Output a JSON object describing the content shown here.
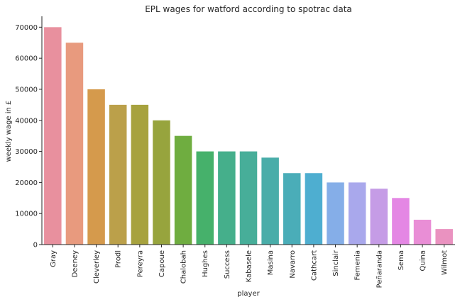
{
  "chart_data": {
    "type": "bar",
    "title": "EPL wages for watford according to spotrac data",
    "xlabel": "player",
    "ylabel": "weekly wage in £",
    "categories": [
      "Gray",
      "Deeney",
      "Cleverley",
      "Prodl",
      "Pereyra",
      "Capoue",
      "Chalobah",
      "Hughes",
      "Success",
      "Kabasele",
      "Masina",
      "Navarro",
      "Cathcart",
      "Sinclair",
      "Femenia",
      "Peñaranda",
      "Sema",
      "Quina",
      "Wilmot"
    ],
    "values": [
      70000,
      65000,
      50000,
      45000,
      45000,
      40000,
      35000,
      30000,
      30000,
      30000,
      28000,
      23000,
      23000,
      20000,
      20000,
      18000,
      15000,
      8000,
      5000
    ],
    "colors": [
      "#e8909e",
      "#e89a7e",
      "#d59a4c",
      "#bba04a",
      "#a7a23e",
      "#97a43d",
      "#6fad40",
      "#46b16b",
      "#45af8b",
      "#47ae99",
      "#49ada9",
      "#4aadb8",
      "#4eaed0",
      "#85aee8",
      "#a9a8ec",
      "#c59ce6",
      "#e487e4",
      "#e98ed6",
      "#ea92c0"
    ],
    "ylim": [
      0,
      73500
    ],
    "yticks": [
      0,
      10000,
      20000,
      30000,
      40000,
      50000,
      60000,
      70000
    ],
    "grid": false,
    "legend": "none"
  }
}
